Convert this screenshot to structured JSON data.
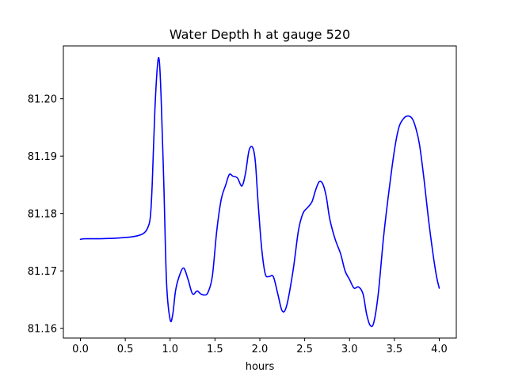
{
  "chart_data": {
    "type": "line",
    "title": "Water Depth h at gauge 520",
    "xlabel": "hours",
    "ylabel": "",
    "xlim": [
      -0.19,
      4.19
    ],
    "ylim": [
      81.1583,
      81.2092
    ],
    "xticks": [
      0.0,
      0.5,
      1.0,
      1.5,
      2.0,
      2.5,
      3.0,
      3.5,
      4.0
    ],
    "xtick_labels": [
      "0.0",
      "0.5",
      "1.0",
      "1.5",
      "2.0",
      "2.5",
      "3.0",
      "3.5",
      "4.0"
    ],
    "yticks": [
      81.16,
      81.17,
      81.18,
      81.19,
      81.2
    ],
    "ytick_labels": [
      "81.16",
      "81.17",
      "81.18",
      "81.19",
      "81.20"
    ],
    "grid": false,
    "series": [
      {
        "color": "#0000ff",
        "x": [
          0.0,
          0.05,
          0.2,
          0.4,
          0.6,
          0.7,
          0.75,
          0.78,
          0.8,
          0.83,
          0.86,
          0.88,
          0.9,
          0.93,
          0.96,
          1.0,
          1.03,
          1.06,
          1.1,
          1.15,
          1.2,
          1.25,
          1.3,
          1.34,
          1.38,
          1.42,
          1.47,
          1.52,
          1.57,
          1.62,
          1.66,
          1.7,
          1.75,
          1.8,
          1.84,
          1.88,
          1.92,
          1.95,
          1.98,
          2.02,
          2.06,
          2.1,
          2.15,
          2.2,
          2.25,
          2.3,
          2.37,
          2.43,
          2.48,
          2.53,
          2.58,
          2.62,
          2.66,
          2.7,
          2.74,
          2.78,
          2.84,
          2.9,
          2.95,
          3.0,
          3.05,
          3.1,
          3.15,
          3.19,
          3.23,
          3.27,
          3.32,
          3.38,
          3.44,
          3.5,
          3.55,
          3.6,
          3.65,
          3.7,
          3.74,
          3.78,
          3.83,
          3.88,
          3.93,
          3.97,
          4.0
        ],
        "y": [
          81.1755,
          81.1756,
          81.1756,
          81.1757,
          81.176,
          81.1765,
          81.1775,
          81.1795,
          81.185,
          81.198,
          81.206,
          81.2065,
          81.2,
          81.185,
          81.168,
          81.1615,
          81.1625,
          81.1665,
          81.169,
          81.1705,
          81.1685,
          81.166,
          81.1665,
          81.166,
          81.1658,
          81.1662,
          81.169,
          81.177,
          81.1825,
          81.185,
          81.1868,
          81.1865,
          81.1862,
          81.1848,
          81.187,
          81.191,
          81.1915,
          81.189,
          81.182,
          81.174,
          81.1695,
          81.169,
          81.169,
          81.166,
          81.163,
          81.164,
          81.17,
          81.177,
          81.18,
          81.181,
          81.182,
          81.184,
          81.1855,
          81.1852,
          81.183,
          81.179,
          81.1755,
          81.173,
          81.17,
          81.1685,
          81.167,
          81.1672,
          81.166,
          81.1625,
          81.1605,
          81.161,
          81.166,
          81.176,
          81.184,
          81.191,
          81.195,
          81.1965,
          81.197,
          81.1965,
          81.1948,
          81.192,
          81.186,
          81.179,
          81.173,
          81.169,
          81.167
        ]
      }
    ]
  }
}
